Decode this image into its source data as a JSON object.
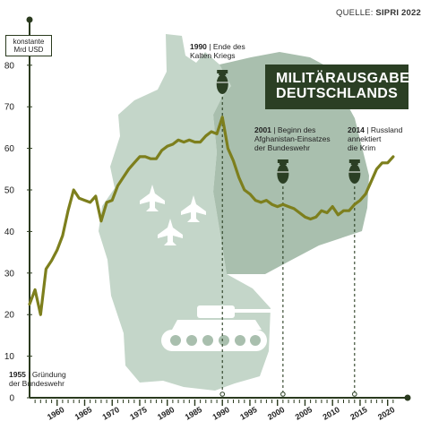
{
  "source": {
    "prefix": "QUELLE:",
    "name": "SIPRI 2022"
  },
  "title_line1": "MILITÄRAUSGABEN",
  "title_line2": "DEUTSCHLANDS",
  "colors": {
    "line": "#7d7f1d",
    "map_light": "#c4d6c9",
    "map_dark": "#a9bfae",
    "axis": "#2a3a1e",
    "banner": "#2b3f24",
    "icon": "#2b3f24"
  },
  "chart_data": {
    "type": "line",
    "ylabel": "konstante Mrd USD",
    "ylim": [
      0,
      85
    ],
    "xlim": [
      1955,
      2022
    ],
    "yticks": [
      0,
      10,
      20,
      30,
      40,
      50,
      60,
      70,
      80
    ],
    "xticks": [
      1960,
      1965,
      1970,
      1975,
      1980,
      1985,
      1990,
      1995,
      2000,
      2005,
      2010,
      2015,
      2020
    ],
    "grid": false,
    "series": [
      {
        "x": [
          1955,
          1956,
          1957,
          1958,
          1959,
          1960,
          1961,
          1962,
          1963,
          1964,
          1965,
          1966,
          1967,
          1968,
          1969,
          1970,
          1971,
          1972,
          1973,
          1974,
          1975,
          1976,
          1977,
          1978,
          1979,
          1980,
          1981,
          1982,
          1983,
          1984,
          1985,
          1986,
          1987,
          1988,
          1989,
          1990,
          1991,
          1992,
          1993,
          1994,
          1995,
          1996,
          1997,
          1998,
          1999,
          2000,
          2001,
          2002,
          2003,
          2004,
          2005,
          2006,
          2007,
          2008,
          2009,
          2010,
          2011,
          2012,
          2013,
          2014,
          2015,
          2016,
          2017,
          2018,
          2019,
          2020,
          2021
        ],
        "values": [
          22.5,
          26,
          20,
          31,
          33,
          35.5,
          39,
          45,
          50,
          48,
          47.5,
          47,
          48.5,
          42.5,
          47,
          47.5,
          51,
          53,
          55,
          56.5,
          58,
          58,
          57.5,
          57.5,
          59.5,
          60.5,
          61,
          62,
          61.5,
          62,
          61.5,
          61.5,
          63,
          64,
          63.5,
          67.5,
          60,
          57,
          53,
          50,
          49,
          47.5,
          47,
          47.5,
          46.5,
          46,
          46.5,
          46,
          45.5,
          44.5,
          43.5,
          43,
          43.5,
          45,
          44.5,
          46,
          44,
          45,
          45,
          46.5,
          47.5,
          49,
          52,
          55,
          56.5,
          56.5,
          58
        ]
      }
    ],
    "annotations": [
      {
        "year": 1955,
        "label": "1955",
        "text_lines": [
          "| Gründung",
          "der Bundeswehr"
        ]
      },
      {
        "year": 1990,
        "label": "1990",
        "text_lines": [
          "| Ende des",
          "Kalten Kriegs"
        ]
      },
      {
        "year": 2001,
        "label": "2001",
        "text_lines": [
          "| Beginn des",
          "Afghanistan-Einsatzes",
          "der Bundeswehr"
        ]
      },
      {
        "year": 2014,
        "label": "2014",
        "text_lines": [
          "| Russland",
          "annektiert",
          "die Krim"
        ]
      }
    ]
  }
}
